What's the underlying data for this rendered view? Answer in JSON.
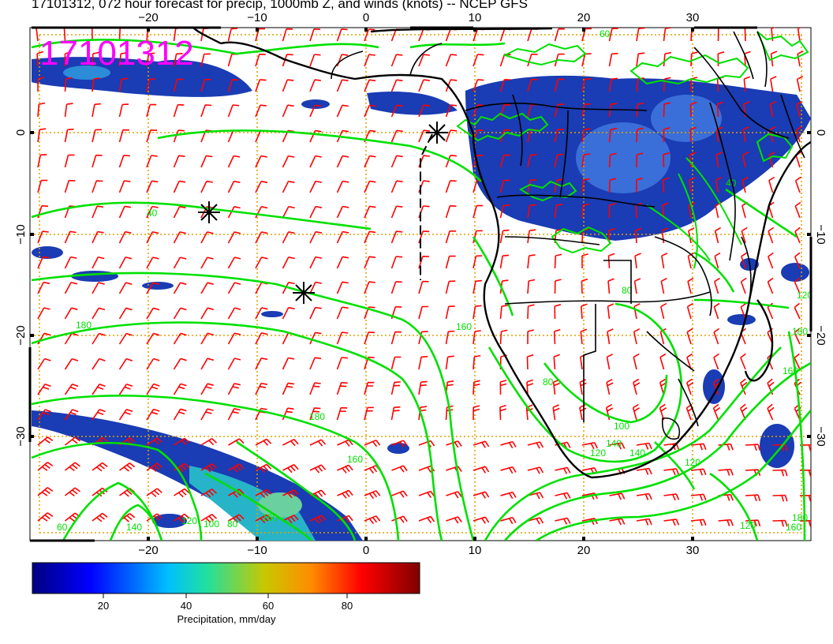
{
  "title": "17101312, 072 hour forecast for precip, 1000mb Z, and winds (knots) -- NCEP GFS",
  "date_stamp": "17101312",
  "map": {
    "lon_ticks": [
      "−20",
      "−10",
      "0",
      "10",
      "20",
      "30"
    ],
    "lat_ticks": [
      "0",
      "−10",
      "−20",
      "−30"
    ],
    "contour_labels": [
      "60",
      "40",
      "40",
      "80",
      "160",
      "180",
      "180",
      "160",
      "140",
      "120",
      "100",
      "80",
      "60",
      "160",
      "140",
      "120",
      "120",
      "140",
      "160",
      "180",
      "120",
      "100",
      "80",
      "120",
      "160",
      "180"
    ],
    "colors": {
      "contour": "#00e000",
      "wind_barb": "#ff0000",
      "grid": "#e0a000",
      "land": "#000000",
      "precip_base": "#1a3cb4"
    }
  },
  "colorbar": {
    "ticks": [
      "20",
      "40",
      "60",
      "80"
    ],
    "label": "Precipitation, mm/day",
    "colors": [
      "#000080",
      "#0000ff",
      "#00bfff",
      "#20e0a0",
      "#c8c800",
      "#ff8c00",
      "#ff0000",
      "#800000"
    ]
  }
}
